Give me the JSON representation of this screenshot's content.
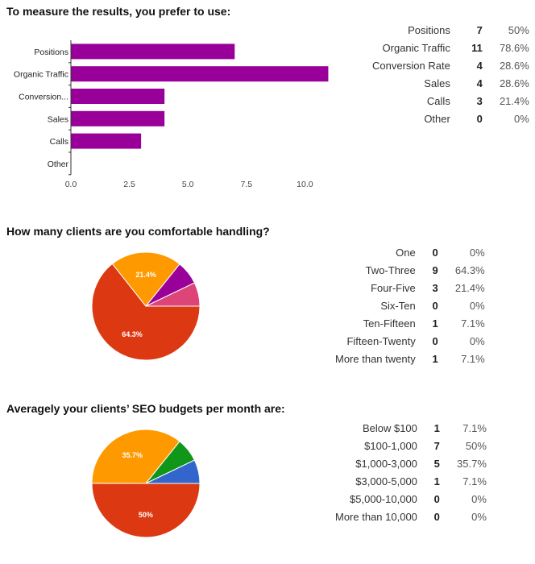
{
  "questions": [
    {
      "title": "To measure the results, you prefer to use:",
      "rows": [
        {
          "label": "Positions",
          "count": "7",
          "pct": "50%"
        },
        {
          "label": "Organic Traffic",
          "count": "11",
          "pct": "78.6%"
        },
        {
          "label": "Conversion Rate",
          "count": "4",
          "pct": "28.6%"
        },
        {
          "label": "Sales",
          "count": "4",
          "pct": "28.6%"
        },
        {
          "label": "Calls",
          "count": "3",
          "pct": "21.4%"
        },
        {
          "label": "Other",
          "count": "0",
          "pct": "0%"
        }
      ]
    },
    {
      "title": "How many clients are you comfortable handling?",
      "rows": [
        {
          "label": "One",
          "count": "0",
          "pct": "0%"
        },
        {
          "label": "Two-Three",
          "count": "9",
          "pct": "64.3%"
        },
        {
          "label": "Four-Five",
          "count": "3",
          "pct": "21.4%"
        },
        {
          "label": "Six-Ten",
          "count": "0",
          "pct": "0%"
        },
        {
          "label": "Ten-Fifteen",
          "count": "1",
          "pct": "7.1%"
        },
        {
          "label": "Fifteen-Twenty",
          "count": "0",
          "pct": "0%"
        },
        {
          "label": "More than twenty",
          "count": "1",
          "pct": "7.1%"
        }
      ]
    },
    {
      "title": "Averagely your clients’ SEO budgets per month are:",
      "rows": [
        {
          "label": "Below $100",
          "count": "1",
          "pct": "7.1%"
        },
        {
          "label": "$100-1,000",
          "count": "7",
          "pct": "50%"
        },
        {
          "label": "$1,000-3,000",
          "count": "5",
          "pct": "35.7%"
        },
        {
          "label": "$3,000-5,000",
          "count": "1",
          "pct": "7.1%"
        },
        {
          "label": "$5,000-10,000",
          "count": "0",
          "pct": "0%"
        },
        {
          "label": "More than 10,000",
          "count": "0",
          "pct": "0%"
        }
      ]
    }
  ],
  "chart_data": [
    {
      "type": "bar",
      "orientation": "horizontal",
      "categories": [
        "Positions",
        "Organic Traffic",
        "Conversion...",
        "Sales",
        "Calls",
        "Other"
      ],
      "values": [
        7,
        11,
        4,
        4,
        3,
        0
      ],
      "xticks": [
        "0.0",
        "2.5",
        "5.0",
        "7.5",
        "10.0"
      ],
      "xlim": [
        0,
        12.5
      ],
      "color": "#990099",
      "grid": false
    },
    {
      "type": "pie",
      "labels": [
        "Two-Three",
        "Four-Five",
        "Ten-Fifteen",
        "More than twenty"
      ],
      "values": [
        64.3,
        21.4,
        7.1,
        7.1
      ],
      "slice_labels": [
        "64.3%",
        "21.4%",
        "",
        ""
      ],
      "colors": [
        "#dc3912",
        "#ff9900",
        "#990099",
        "#dd4477"
      ]
    },
    {
      "type": "pie",
      "labels": [
        "$100-1,000",
        "$1,000-3,000",
        "$3,000-5,000",
        "Below $100"
      ],
      "values": [
        50,
        35.7,
        7.1,
        7.1
      ],
      "slice_labels": [
        "50%",
        "35.7%",
        "",
        ""
      ],
      "colors": [
        "#dc3912",
        "#ff9900",
        "#109618",
        "#3366cc"
      ]
    }
  ]
}
